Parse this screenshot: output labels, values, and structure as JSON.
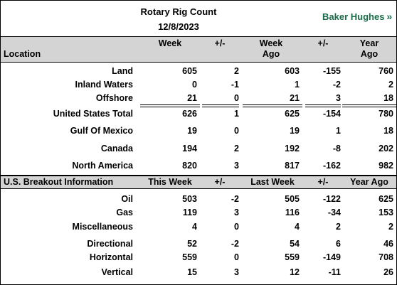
{
  "title": "Rotary Rig Count",
  "date": "12/8/2023",
  "brand": "Baker Hughes",
  "brand_icon": "chevron-right-double-icon",
  "header1": {
    "location": "Location",
    "week": "Week",
    "pm1": "+/-",
    "week_ago_1": "Week",
    "week_ago_2": "Ago",
    "pm2": "+/-",
    "year_ago_1": "Year",
    "year_ago_2": "Ago"
  },
  "rows1": [
    {
      "label": "Land",
      "week": "605",
      "pm1": "2",
      "wago": "603",
      "pm2": "-155",
      "yago": "760"
    },
    {
      "label": "Inland Waters",
      "week": "0",
      "pm1": "-1",
      "wago": "1",
      "pm2": "-2",
      "yago": "2"
    },
    {
      "label": "Offshore",
      "week": "21",
      "pm1": "0",
      "wago": "21",
      "pm2": "3",
      "yago": "18"
    },
    {
      "label": "United States Total",
      "week": "626",
      "pm1": "1",
      "wago": "625",
      "pm2": "-154",
      "yago": "780"
    },
    {
      "label": "Gulf Of Mexico",
      "week": "19",
      "pm1": "0",
      "wago": "19",
      "pm2": "1",
      "yago": "18"
    },
    {
      "label": "Canada",
      "week": "194",
      "pm1": "2",
      "wago": "192",
      "pm2": "-8",
      "yago": "202"
    },
    {
      "label": "North America",
      "week": "820",
      "pm1": "3",
      "wago": "817",
      "pm2": "-162",
      "yago": "982"
    }
  ],
  "header2": {
    "label": "U.S. Breakout Information",
    "this_week": "This Week",
    "pm1": "+/-",
    "last_week": "Last Week",
    "pm2": "+/-",
    "year_ago": "Year Ago"
  },
  "rows2": [
    {
      "label": "Oil",
      "week": "503",
      "pm1": "-2",
      "wago": "505",
      "pm2": "-122",
      "yago": "625"
    },
    {
      "label": "Gas",
      "week": "119",
      "pm1": "3",
      "wago": "116",
      "pm2": "-34",
      "yago": "153"
    },
    {
      "label": "Miscellaneous",
      "week": "4",
      "pm1": "0",
      "wago": "4",
      "pm2": "2",
      "yago": "2"
    },
    {
      "label": "Directional",
      "week": "52",
      "pm1": "-2",
      "wago": "54",
      "pm2": "6",
      "yago": "46"
    },
    {
      "label": "Horizontal",
      "week": "559",
      "pm1": "0",
      "wago": "559",
      "pm2": "-149",
      "yago": "708"
    },
    {
      "label": "Vertical",
      "week": "15",
      "pm1": "3",
      "wago": "12",
      "pm2": "-11",
      "yago": "26"
    }
  ]
}
